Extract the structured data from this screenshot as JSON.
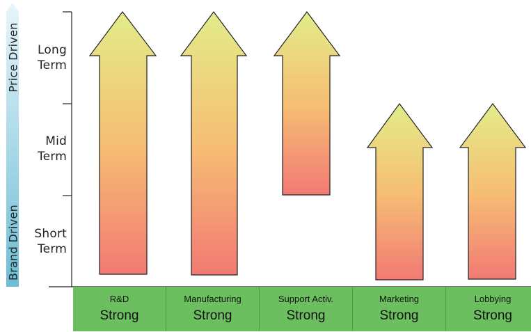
{
  "axis": {
    "top_label": "Price Driven",
    "bottom_label": "Brand Driven",
    "rows": [
      {
        "line1": "Long",
        "line2": "Term"
      },
      {
        "line1": "Mid",
        "line2": "Term"
      },
      {
        "line1": "Short",
        "line2": "Term"
      }
    ]
  },
  "categories": [
    {
      "name": "R&D",
      "value": "Strong",
      "span": [
        "Short Term",
        "Long Term"
      ]
    },
    {
      "name": "Manufacturing",
      "value": "Strong",
      "span": [
        "Short Term",
        "Long Term"
      ]
    },
    {
      "name": "Support Activ.",
      "value": "Strong",
      "span": [
        "Mid Term",
        "Long Term"
      ]
    },
    {
      "name": "Marketing",
      "value": "Strong",
      "span": [
        "Short Term",
        "Mid Term"
      ]
    },
    {
      "name": "Lobbying",
      "value": "Strong",
      "span": [
        "Short Term",
        "Mid Term"
      ]
    }
  ],
  "colors": {
    "arrow_top": "#e2ec8a",
    "arrow_mid": "#f6bf74",
    "arrow_bottom": "#f27a74",
    "axis_bar_top": "#d8f0f7",
    "axis_bar_bottom": "#78c3d9",
    "category_bg": "#6bbf5f"
  }
}
